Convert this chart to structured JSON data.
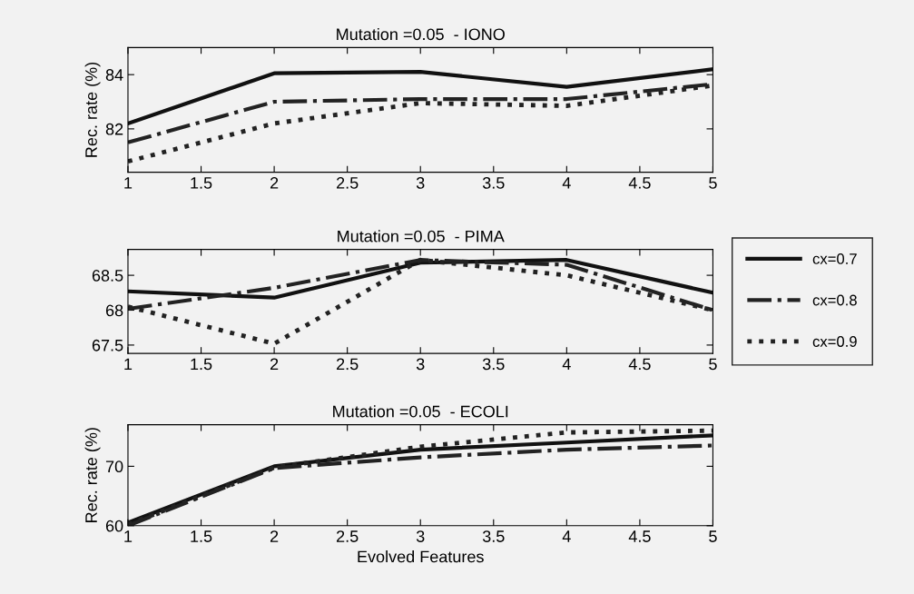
{
  "chart_data": [
    {
      "type": "line",
      "title": "Mutation =0.05  - IONO",
      "ylabel": "Rec. rate (%)",
      "x": [
        1,
        2,
        3,
        4,
        5
      ],
      "xlim": [
        1,
        5
      ],
      "xticks": [
        1,
        1.5,
        2,
        2.5,
        3,
        3.5,
        4,
        4.5,
        5
      ],
      "ylim": [
        80.4,
        85
      ],
      "yticks": [
        82,
        84
      ],
      "grid": false,
      "legend": false,
      "series": [
        {
          "color": "#111111",
          "line_style": "solid",
          "values": [
            82.2,
            84.05,
            84.1,
            83.55,
            84.2
          ]
        },
        {
          "color": "#222222",
          "line_style": "dashdot",
          "values": [
            81.5,
            83.0,
            83.1,
            83.1,
            83.65
          ]
        },
        {
          "color": "#222222",
          "line_style": "dotted",
          "values": [
            80.8,
            82.2,
            82.95,
            82.85,
            83.6
          ]
        }
      ]
    },
    {
      "type": "line",
      "title": "Mutation =0.05  - PIMA",
      "x": [
        1,
        2,
        3,
        4,
        5
      ],
      "xlim": [
        1,
        5
      ],
      "xticks": [
        1,
        1.5,
        2,
        2.5,
        3,
        3.5,
        4,
        4.5,
        5
      ],
      "ylim": [
        67.38,
        68.87
      ],
      "yticks": [
        67.5,
        68,
        68.5
      ],
      "grid": false,
      "legend": "right",
      "series": [
        {
          "name": "cx=0.7",
          "color": "#111111",
          "line_style": "solid",
          "values": [
            68.27,
            68.18,
            68.68,
            68.72,
            68.25
          ]
        },
        {
          "name": "cx=0.8",
          "color": "#222222",
          "line_style": "dashdot",
          "values": [
            68.02,
            68.32,
            68.72,
            68.65,
            68.0
          ]
        },
        {
          "name": "cx=0.9",
          "color": "#222222",
          "line_style": "dotted",
          "values": [
            68.05,
            67.52,
            68.72,
            68.5,
            68.0
          ]
        }
      ]
    },
    {
      "type": "line",
      "title": "Mutation =0.05  - ECOLI",
      "xlabel": "Evolved Features",
      "ylabel": "Rec. rate (%)",
      "x": [
        1,
        2,
        3,
        4,
        5
      ],
      "xlim": [
        1,
        5
      ],
      "xticks": [
        1,
        1.5,
        2,
        2.5,
        3,
        3.5,
        4,
        4.5,
        5
      ],
      "ylim": [
        60,
        77
      ],
      "yticks": [
        60,
        70
      ],
      "grid": false,
      "legend": false,
      "series": [
        {
          "color": "#111111",
          "line_style": "solid",
          "values": [
            60.5,
            70,
            72.8,
            74,
            75.2
          ]
        },
        {
          "color": "#222222",
          "line_style": "dashdot",
          "values": [
            60,
            69.7,
            71.5,
            72.8,
            73.5
          ]
        },
        {
          "color": "#222222",
          "line_style": "dotted",
          "values": [
            60.2,
            69.8,
            73.3,
            75.7,
            76
          ]
        }
      ]
    }
  ]
}
